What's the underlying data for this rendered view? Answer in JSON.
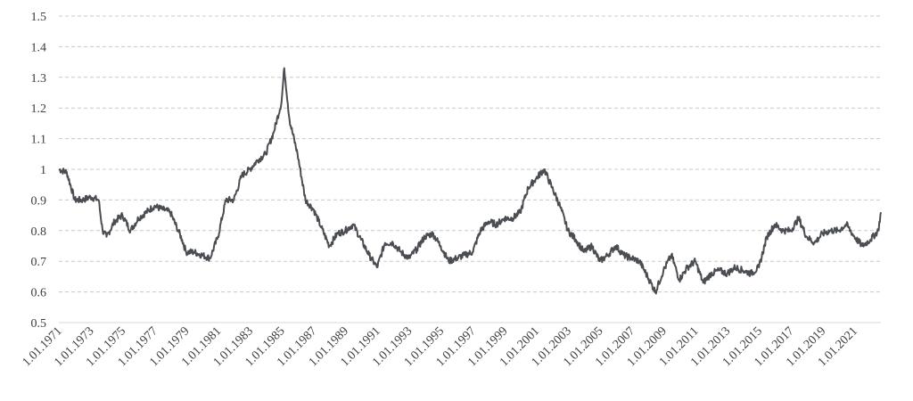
{
  "chart_data": {
    "type": "line",
    "title": "",
    "xlabel": "",
    "ylabel": "",
    "ylim": [
      0.5,
      1.5
    ],
    "y_ticks": [
      "1.5",
      "1.4",
      "1.3",
      "1.2",
      "1.1",
      "1",
      "0.9",
      "0.8",
      "0.7",
      "0.6",
      "0.5"
    ],
    "x_ticks": [
      "1.01.1971",
      "1.01.1973",
      "1.01.1975",
      "1.01.1977",
      "1.01.1979",
      "1.01.1981",
      "1.01.1983",
      "1.01.1985",
      "1.01.1987",
      "1.01.1989",
      "1.01.1991",
      "1.01.1993",
      "1.01.1995",
      "1.01.1997",
      "1.01.1999",
      "1.01.2001",
      "1.01.2003",
      "1.01.2005",
      "1.01.2007",
      "1.01.2009",
      "1.01.2011",
      "1.01.2013",
      "1.01.2015",
      "1.01.2017",
      "1.01.2019",
      "1.01.2021"
    ],
    "x_range": [
      "1971-01",
      "2022-09"
    ],
    "grid": "horizontal dashed",
    "legend": "none",
    "line_color": "#4a4d52",
    "series": [
      {
        "x": [
          "1971-01",
          "1971-07",
          "1972-01",
          "1972-07",
          "1973-01",
          "1973-07",
          "1973-10",
          "1974-01",
          "1974-07",
          "1975-01",
          "1975-07",
          "1976-01",
          "1976-07",
          "1977-01",
          "1977-07",
          "1978-01",
          "1978-07",
          "1978-10",
          "1979-01",
          "1979-07",
          "1980-01",
          "1980-07",
          "1981-01",
          "1981-07",
          "1982-01",
          "1982-07",
          "1983-01",
          "1983-07",
          "1984-01",
          "1984-07",
          "1985-01",
          "1985-03",
          "1985-07",
          "1986-01",
          "1986-07",
          "1987-01",
          "1987-07",
          "1988-01",
          "1988-07",
          "1989-01",
          "1989-07",
          "1990-01",
          "1990-07",
          "1991-01",
          "1991-07",
          "1992-01",
          "1992-07",
          "1993-01",
          "1993-07",
          "1994-01",
          "1994-07",
          "1995-01",
          "1995-07",
          "1996-01",
          "1996-07",
          "1997-01",
          "1997-07",
          "1998-01",
          "1998-07",
          "1999-01",
          "1999-07",
          "2000-01",
          "2000-07",
          "2001-01",
          "2001-07",
          "2002-01",
          "2002-07",
          "2003-01",
          "2003-07",
          "2004-01",
          "2004-07",
          "2005-01",
          "2005-07",
          "2006-01",
          "2006-07",
          "2007-01",
          "2007-07",
          "2008-01",
          "2008-07",
          "2009-01",
          "2009-07",
          "2010-01",
          "2010-07",
          "2011-01",
          "2011-07",
          "2012-01",
          "2012-07",
          "2013-01",
          "2013-07",
          "2014-01",
          "2014-07",
          "2015-01",
          "2015-07",
          "2016-01",
          "2016-07",
          "2017-01",
          "2017-07",
          "2018-01",
          "2018-07",
          "2019-01",
          "2019-07",
          "2020-01",
          "2020-07",
          "2021-01",
          "2021-07",
          "2022-01",
          "2022-07",
          "2022-09"
        ],
        "values": [
          1.0,
          0.99,
          0.9,
          0.9,
          0.91,
          0.9,
          0.8,
          0.78,
          0.83,
          0.85,
          0.8,
          0.84,
          0.86,
          0.88,
          0.87,
          0.86,
          0.8,
          0.77,
          0.73,
          0.73,
          0.72,
          0.71,
          0.78,
          0.9,
          0.9,
          0.98,
          1.0,
          1.03,
          1.05,
          1.12,
          1.22,
          1.33,
          1.16,
          1.05,
          0.9,
          0.87,
          0.81,
          0.75,
          0.79,
          0.8,
          0.82,
          0.77,
          0.72,
          0.68,
          0.76,
          0.76,
          0.73,
          0.71,
          0.74,
          0.78,
          0.79,
          0.75,
          0.7,
          0.71,
          0.72,
          0.73,
          0.8,
          0.83,
          0.82,
          0.84,
          0.84,
          0.86,
          0.94,
          0.97,
          1.0,
          0.94,
          0.88,
          0.8,
          0.77,
          0.73,
          0.75,
          0.7,
          0.72,
          0.75,
          0.72,
          0.71,
          0.7,
          0.65,
          0.6,
          0.67,
          0.72,
          0.64,
          0.68,
          0.7,
          0.63,
          0.66,
          0.67,
          0.66,
          0.68,
          0.67,
          0.66,
          0.68,
          0.78,
          0.82,
          0.8,
          0.8,
          0.84,
          0.78,
          0.76,
          0.79,
          0.8,
          0.8,
          0.82,
          0.78,
          0.75,
          0.77,
          0.8,
          0.86
        ]
      }
    ]
  }
}
